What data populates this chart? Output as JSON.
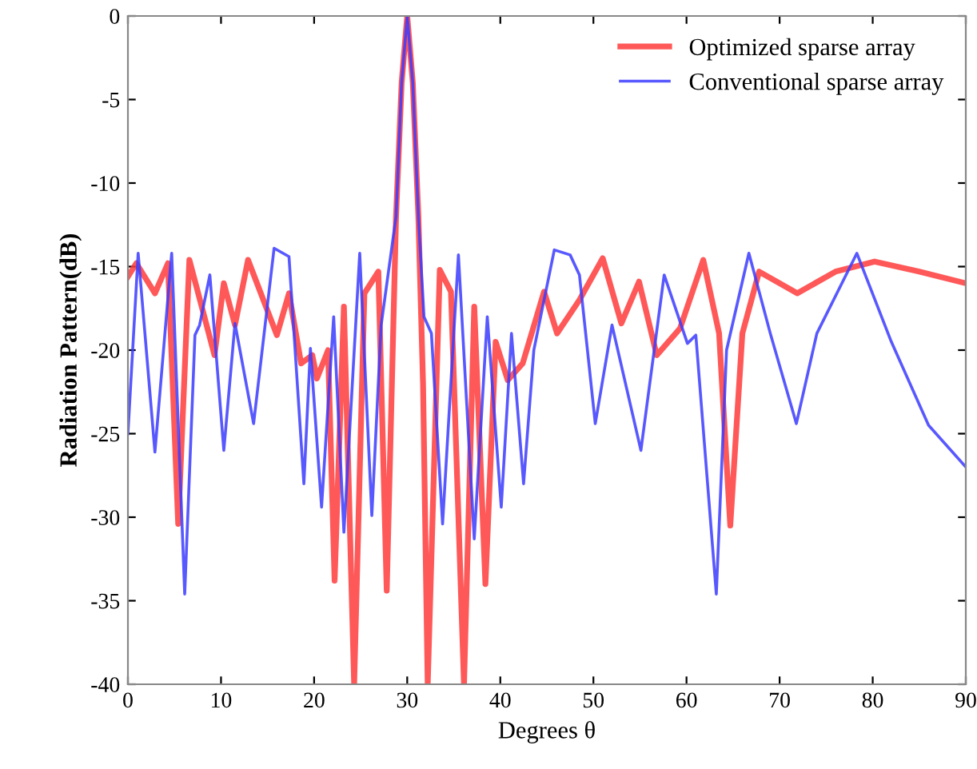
{
  "chart_data": {
    "type": "line",
    "xlabel": "Degrees θ",
    "ylabel": "Radiation Pattern(dB)",
    "xlim": [
      0,
      90
    ],
    "xticks": [
      0,
      10,
      20,
      30,
      40,
      50,
      60,
      70,
      80,
      90
    ],
    "ylim": [
      -40,
      0
    ],
    "yticks": [
      -40,
      -35,
      -30,
      -25,
      -20,
      -15,
      -10,
      -5,
      0
    ],
    "grid": false,
    "legend": "top right",
    "marker": "none",
    "line_style": "solid",
    "series": [
      {
        "name": "Optimized sparse array",
        "color": "#ff3b3b",
        "x": [
          0,
          0.9,
          2.9,
          4.3,
          5.4,
          6.6,
          9.3,
          10.3,
          11.5,
          12.9,
          16.0,
          17.3,
          18.6,
          19.8,
          20.3,
          21.5,
          22.2,
          23.2,
          24.3,
          25.4,
          26.9,
          27.8,
          28.8,
          29.4,
          30,
          30.6,
          31.2,
          31.7,
          32.2,
          33.5,
          34.7,
          36.1,
          37.2,
          38.4,
          39.5,
          40.8,
          42.4,
          44.7,
          46.1,
          48.5,
          51,
          53,
          54.9,
          56.8,
          59.3,
          61.8,
          63.5,
          64.7,
          66,
          67.8,
          71.9,
          76,
          80.2,
          85,
          90
        ],
        "values": [
          -15.6,
          -14.8,
          -16.6,
          -14.8,
          -30.4,
          -14.6,
          -20.3,
          -16,
          -18.5,
          -14.6,
          -19.1,
          -16.6,
          -20.8,
          -20.3,
          -21.7,
          -20,
          -33.8,
          -17.4,
          -40,
          -16.6,
          -15.3,
          -34.4,
          -12,
          -4,
          0,
          -4,
          -12,
          -22,
          -40,
          -15.2,
          -16.5,
          -40,
          -17.4,
          -34,
          -19.5,
          -21.8,
          -20.8,
          -16.5,
          -19,
          -17,
          -14.5,
          -18.4,
          -15.9,
          -20.3,
          -18.7,
          -14.6,
          -19,
          -30.5,
          -19,
          -15.3,
          -16.6,
          -15.3,
          -14.7,
          -15.3,
          -16
        ]
      },
      {
        "name": "Conventional sparse array",
        "color": "#3b3bff",
        "x": [
          0,
          1.1,
          2.9,
          4.7,
          6.1,
          7.2,
          7.7,
          8.8,
          10.3,
          11.5,
          13.5,
          15.7,
          17.3,
          18.9,
          19.6,
          20.8,
          22.1,
          23.2,
          24.9,
          26.2,
          27.2,
          28.8,
          29.4,
          30,
          30.6,
          31.2,
          31.8,
          32.6,
          33.8,
          35.5,
          37.2,
          38.6,
          40.1,
          41.2,
          42.5,
          43.6,
          45.8,
          47.5,
          48.5,
          50.2,
          52,
          55.1,
          57.6,
          60.1,
          61,
          63.2,
          64.3,
          66.7,
          69,
          71.8,
          74,
          78.3,
          82,
          86,
          90
        ],
        "values": [
          -25,
          -14.2,
          -26.1,
          -14.2,
          -34.6,
          -19.1,
          -18.5,
          -15.5,
          -26,
          -18.4,
          -24.4,
          -13.9,
          -14.4,
          -28,
          -19.9,
          -29.4,
          -18,
          -30.9,
          -14.2,
          -29.9,
          -18.5,
          -12,
          -4,
          0,
          -4,
          -12,
          -18,
          -19,
          -30.4,
          -14.3,
          -31.3,
          -18,
          -29.4,
          -19,
          -28,
          -20,
          -14,
          -14.3,
          -15.5,
          -24.4,
          -18.5,
          -26,
          -15.5,
          -19.6,
          -19.1,
          -34.6,
          -20,
          -14.2,
          -19,
          -24.4,
          -19,
          -14.2,
          -19.5,
          -24.5,
          -27
        ]
      }
    ]
  }
}
